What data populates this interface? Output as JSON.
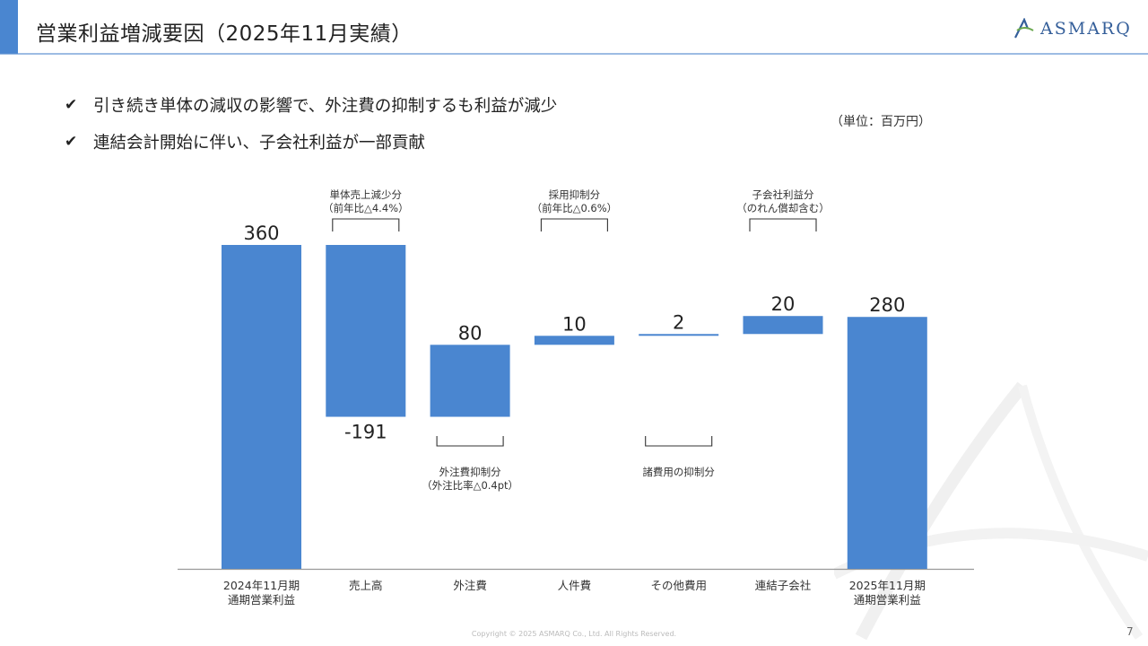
{
  "page": {
    "title": "営業利益増減要因（2025年11月実績）",
    "logo_text": "ASMARQ",
    "bullets": [
      "引き続き単体の減収の影響で、外注費の抑制するも利益が減少",
      "連結会計開始に伴い、子会社利益が一部貢献"
    ],
    "unit": "（単位：百万円）",
    "copyright": "Copyright © 2025 ASMARQ Co., Ltd. All Rights Reserved.",
    "page_number": "7",
    "colors": {
      "accent": "#4a86d0",
      "bar": "#4a86d0",
      "logo": "#355f9a"
    }
  },
  "chart_data": {
    "type": "bar",
    "subtype": "waterfall",
    "categories": [
      [
        "2024年11月期",
        "通期営業利益"
      ],
      [
        "売上高"
      ],
      [
        "外注費"
      ],
      [
        "人件費"
      ],
      [
        "その他費用"
      ],
      [
        "連結子会社"
      ],
      [
        "2025年11月期",
        "通期営業利益"
      ]
    ],
    "bars": [
      {
        "kind": "total",
        "start": 0,
        "end": 360,
        "label": "360",
        "label_pos": "top"
      },
      {
        "kind": "delta",
        "start": 360,
        "end": 169,
        "label": "-191",
        "label_pos": "bottom"
      },
      {
        "kind": "delta",
        "start": 169,
        "end": 249,
        "label": "80",
        "label_pos": "top"
      },
      {
        "kind": "delta",
        "start": 249,
        "end": 259,
        "label": "10",
        "label_pos": "top"
      },
      {
        "kind": "delta",
        "start": 259,
        "end": 261,
        "label": "2",
        "label_pos": "top"
      },
      {
        "kind": "delta",
        "start": 261,
        "end": 281,
        "label": "20",
        "label_pos": "top"
      },
      {
        "kind": "total",
        "start": 0,
        "end": 280,
        "label": "280",
        "label_pos": "top"
      }
    ],
    "annotations": [
      {
        "bar": 1,
        "side": "top",
        "lines": [
          "単体売上減少分",
          "（前年比△4.4%）"
        ]
      },
      {
        "bar": 2,
        "side": "bottom",
        "lines": [
          "外注費抑制分",
          "（外注比率△0.4pt）"
        ]
      },
      {
        "bar": 3,
        "side": "top",
        "lines": [
          "採用抑制分",
          "（前年比△0.6%）"
        ]
      },
      {
        "bar": 4,
        "side": "bottom",
        "lines": [
          "諸費用の抑制分"
        ]
      },
      {
        "bar": 5,
        "side": "top",
        "lines": [
          "子会社利益分",
          "（のれん償却含む）"
        ]
      }
    ],
    "ylim": [
      0,
      360
    ],
    "grid": false,
    "legend": "none"
  }
}
